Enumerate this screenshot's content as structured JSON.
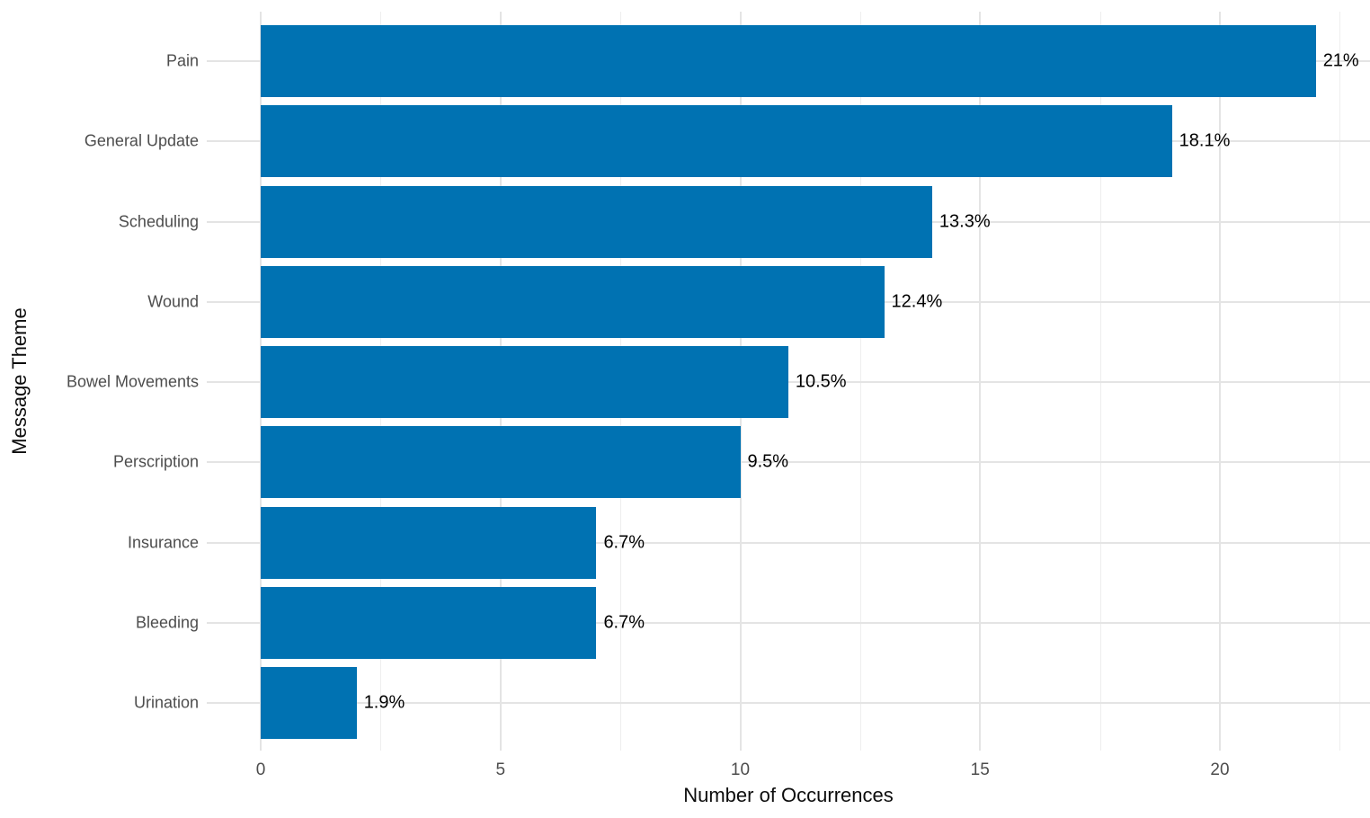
{
  "chart_data": {
    "type": "bar",
    "orientation": "horizontal",
    "title": "",
    "xlabel": "Number of Occurrences",
    "ylabel": "Message Theme",
    "categories": [
      "Pain",
      "General Update",
      "Scheduling",
      "Wound",
      "Bowel Movements",
      "Perscription",
      "Insurance",
      "Bleeding",
      "Urination"
    ],
    "values": [
      22,
      19,
      14,
      13,
      11,
      10,
      7,
      7,
      2
    ],
    "bar_labels": [
      "21%",
      "18.1%",
      "13.3%",
      "12.4%",
      "10.5%",
      "9.5%",
      "6.7%",
      "6.7%",
      "1.9%"
    ],
    "x_ticks": [
      0,
      5,
      10,
      15,
      20
    ],
    "x_minor_ticks": [
      2.5,
      7.5,
      12.5,
      17.5,
      22.5
    ],
    "xlim": [
      -1.1,
      23.1
    ],
    "grid": true,
    "legend": "none",
    "colors": {
      "bar_fill": "#0072B2",
      "background": "#ffffff",
      "major_grid": "#e4e4e4",
      "minor_grid": "#eeeeee",
      "axis_text": "#4d4d4d",
      "axis_title": "#0d0d0d",
      "bar_label_text": "#000000"
    }
  }
}
